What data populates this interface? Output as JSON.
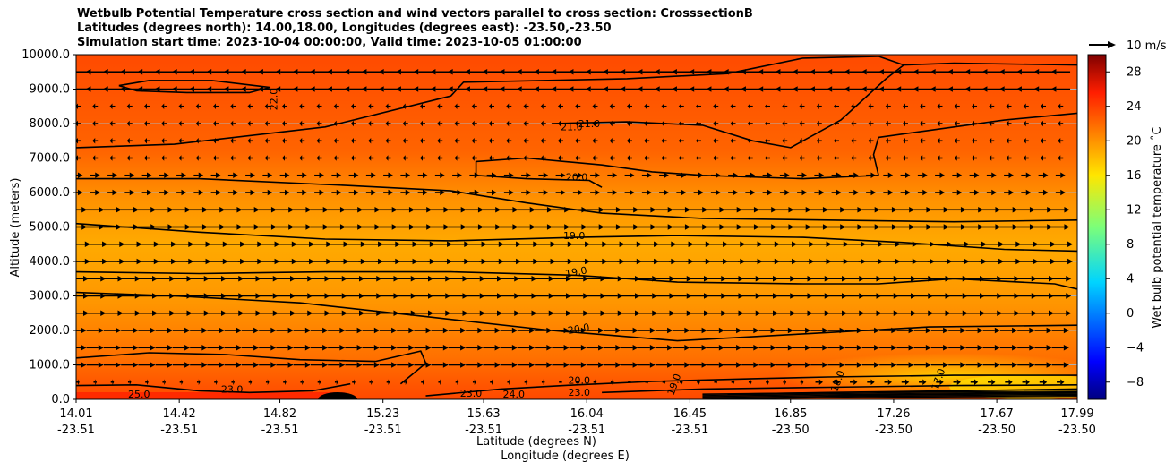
{
  "chart_data": {
    "type": "heatmap",
    "title_lines": [
      "Wetbulb Potential Temperature cross section and wind vectors parallel to cross section: CrosssectionB",
      "Latitudes (degrees north): 14.00,18.00, Longitudes (degrees east): -23.50,-23.50",
      "Simulation start time: 2023-10-04 00:00:00, Valid time: 2023-10-05 01:00:00"
    ],
    "ylabel": "Altitude (meters)",
    "xlabel_line1": "Latitude (degrees N)",
    "xlabel_line2": "Longitude (degrees E)",
    "ylim": [
      0,
      10000
    ],
    "xlim": [
      14.01,
      17.99
    ],
    "y_ticks": [
      {
        "v": 0,
        "label": "0.0"
      },
      {
        "v": 1000,
        "label": "1000.0"
      },
      {
        "v": 2000,
        "label": "2000.0"
      },
      {
        "v": 3000,
        "label": "3000.0"
      },
      {
        "v": 4000,
        "label": "4000.0"
      },
      {
        "v": 5000,
        "label": "5000.0"
      },
      {
        "v": 6000,
        "label": "6000.0"
      },
      {
        "v": 7000,
        "label": "7000.0"
      },
      {
        "v": 8000,
        "label": "8000.0"
      },
      {
        "v": 9000,
        "label": "9000.0"
      },
      {
        "v": 10000,
        "label": "10000.0"
      }
    ],
    "x_ticks": [
      {
        "lat": 14.01,
        "lat_label": "14.01",
        "lon_label": "-23.51"
      },
      {
        "lat": 14.42,
        "lat_label": "14.42",
        "lon_label": "-23.51"
      },
      {
        "lat": 14.82,
        "lat_label": "14.82",
        "lon_label": "-23.51"
      },
      {
        "lat": 15.23,
        "lat_label": "15.23",
        "lon_label": "-23.51"
      },
      {
        "lat": 15.63,
        "lat_label": "15.63",
        "lon_label": "-23.51"
      },
      {
        "lat": 16.04,
        "lat_label": "16.04",
        "lon_label": "-23.51"
      },
      {
        "lat": 16.45,
        "lat_label": "16.45",
        "lon_label": "-23.51"
      },
      {
        "lat": 16.85,
        "lat_label": "16.85",
        "lon_label": "-23.50"
      },
      {
        "lat": 17.26,
        "lat_label": "17.26",
        "lon_label": "-23.50"
      },
      {
        "lat": 17.67,
        "lat_label": "17.67",
        "lon_label": "-23.50"
      },
      {
        "lat": 17.99,
        "lat_label": "17.99",
        "lon_label": "-23.50"
      }
    ],
    "grid": "horizontal",
    "colorbar": {
      "label": "Wet bulb potential temperature ˚C",
      "range": [
        -10,
        30
      ],
      "ticks": [
        -8,
        -4,
        0,
        4,
        8,
        12,
        16,
        20,
        24,
        28
      ],
      "tick_labels": [
        "−8",
        "−4",
        "0",
        "4",
        "8",
        "12",
        "16",
        "20",
        "24",
        "28"
      ],
      "colormap": "jet"
    },
    "quiver_key": {
      "label": "10 m/s",
      "speed": 10
    },
    "contour_labels": [
      {
        "text": "22.0",
        "lat": 14.81,
        "alt": 8700,
        "rot": -90
      },
      {
        "text": "21.0",
        "lat": 15.98,
        "alt": 7800,
        "rot": 0
      },
      {
        "text": "21.0",
        "lat": 16.05,
        "alt": 7900,
        "rot": 0
      },
      {
        "text": "20.0",
        "lat": 16.0,
        "alt": 6350,
        "rot": 0
      },
      {
        "text": "19.0",
        "lat": 15.99,
        "alt": 4650,
        "rot": 0
      },
      {
        "text": "19.0",
        "lat": 16.0,
        "alt": 3600,
        "rot": -10
      },
      {
        "text": "20.0",
        "lat": 16.01,
        "alt": 1950,
        "rot": -10
      },
      {
        "text": "20.0",
        "lat": 16.01,
        "alt": 450,
        "rot": 0
      },
      {
        "text": "23.0",
        "lat": 15.58,
        "alt": 80,
        "rot": 0
      },
      {
        "text": "24.0",
        "lat": 15.75,
        "alt": 50,
        "rot": 0
      },
      {
        "text": "23.0",
        "lat": 14.63,
        "alt": 200,
        "rot": 0
      },
      {
        "text": "25.0",
        "lat": 14.26,
        "alt": 50,
        "rot": 0
      },
      {
        "text": "23.0",
        "lat": 16.01,
        "alt": 100,
        "rot": 0
      },
      {
        "text": "19.0",
        "lat": 16.4,
        "alt": 400,
        "rot": -70
      },
      {
        "text": "18.0",
        "lat": 17.05,
        "alt": 500,
        "rot": -70
      },
      {
        "text": "17.0",
        "lat": 17.45,
        "alt": 550,
        "rot": -70
      }
    ],
    "series": [
      {
        "contour": "22.0 closed",
        "lat": [
          14.18,
          14.3,
          14.55,
          14.78,
          14.7,
          14.45,
          14.25,
          14.18
        ],
        "alt": [
          9100,
          9250,
          9250,
          9050,
          8900,
          8900,
          8950,
          9100
        ]
      },
      {
        "contour": "21.0 north",
        "lat": [
          14.01,
          14.4,
          15.0,
          15.5,
          15.55,
          16.2,
          16.6,
          16.9,
          17.2,
          17.3,
          17.5,
          17.99
        ],
        "alt": [
          7300,
          7400,
          7900,
          8800,
          9200,
          9300,
          9450,
          9900,
          9950,
          9700,
          9750,
          9700
        ]
      },
      {
        "contour": "21.0 branch",
        "lat": [
          17.3,
          17.23,
          17.05,
          16.85,
          16.7,
          16.5,
          16.2,
          15.9
        ],
        "alt": [
          9700,
          9300,
          8100,
          7300,
          7500,
          7950,
          8050,
          8000
        ]
      },
      {
        "contour": "21.0 east",
        "lat": [
          17.99,
          17.7,
          17.4,
          17.2,
          17.18,
          17.2
        ],
        "alt": [
          8300,
          8100,
          7800,
          7600,
          7100,
          6500
        ]
      },
      {
        "contour": "20.0 lobe",
        "lat": [
          17.2,
          16.9,
          16.5,
          16.3,
          16.1,
          15.8,
          15.6,
          15.6,
          15.8,
          16.05,
          16.1
        ],
        "alt": [
          6500,
          6400,
          6500,
          6600,
          6800,
          7000,
          6900,
          6500,
          6400,
          6350,
          6150
        ]
      },
      {
        "contour": "20.0 west",
        "lat": [
          14.01,
          14.5,
          15.1,
          15.5,
          15.8,
          16.1,
          16.5,
          17.0,
          17.5,
          17.99
        ],
        "alt": [
          6400,
          6400,
          6200,
          6050,
          5700,
          5400,
          5250,
          5200,
          5150,
          5200
        ]
      },
      {
        "contour": "19.0 upper",
        "lat": [
          14.01,
          14.5,
          15.0,
          15.5,
          16.0,
          16.4,
          16.9,
          17.3,
          17.7,
          17.99
        ],
        "alt": [
          5100,
          4850,
          4650,
          4600,
          4700,
          4750,
          4700,
          4550,
          4350,
          4300
        ]
      },
      {
        "contour": "19.0 lower",
        "lat": [
          14.01,
          14.5,
          15.0,
          15.5,
          16.0,
          16.4,
          16.9,
          17.2,
          17.5,
          17.9,
          17.99
        ],
        "alt": [
          3700,
          3650,
          3700,
          3700,
          3600,
          3400,
          3350,
          3350,
          3500,
          3350,
          3200
        ]
      },
      {
        "contour": "20.0 lower",
        "lat": [
          14.01,
          14.4,
          14.9,
          15.4,
          15.9,
          16.4,
          16.9,
          17.4,
          17.99
        ],
        "alt": [
          3100,
          3000,
          2800,
          2400,
          2000,
          1700,
          1900,
          2100,
          2150
        ]
      },
      {
        "contour": "21.0 low",
        "lat": [
          14.01,
          14.3,
          14.6,
          14.9,
          15.2,
          15.38,
          15.4,
          15.3
        ],
        "alt": [
          1200,
          1350,
          1300,
          1150,
          1100,
          1400,
          1050,
          450
        ]
      },
      {
        "contour": "22.0 low",
        "lat": [
          14.01,
          14.25,
          14.5,
          14.7,
          14.95,
          15.1
        ],
        "alt": [
          400,
          420,
          250,
          200,
          250,
          450
        ]
      },
      {
        "contour": "20.0 shallow",
        "lat": [
          15.4,
          15.7,
          16.0,
          16.3,
          16.7,
          17.0,
          17.5,
          17.99
        ],
        "alt": [
          100,
          300,
          420,
          520,
          600,
          650,
          700,
          700
        ]
      },
      {
        "contour": "19.0 shallow",
        "lat": [
          16.1,
          16.5,
          17.0,
          17.5,
          17.99
        ],
        "alt": [
          200,
          300,
          350,
          400,
          420
        ]
      },
      {
        "contour": "18.0 shallow",
        "lat": [
          16.6,
          17.0,
          17.5,
          17.99
        ],
        "alt": [
          150,
          200,
          250,
          300
        ]
      },
      {
        "contour": "17.0 shallow",
        "lat": [
          17.0,
          17.4,
          17.99
        ],
        "alt": [
          100,
          150,
          200
        ]
      }
    ]
  }
}
